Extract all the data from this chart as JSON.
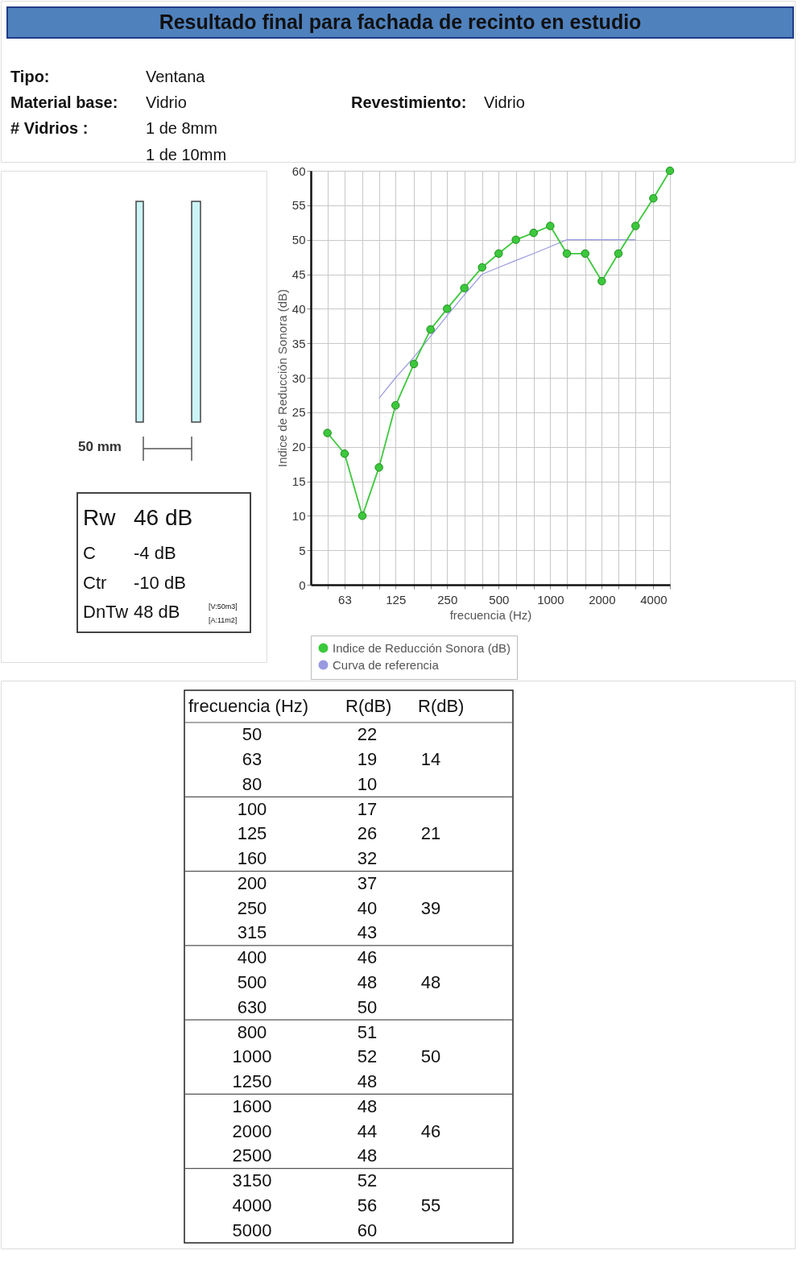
{
  "chart_data": [
    {
      "type": "other",
      "title": "Resultado final para fachada de recinto en estudio",
      "annotations": [
        "Tipo:",
        "Ventana",
        "Material base:",
        "Vidrio",
        "# Vidrios :",
        "1 de 8mm",
        "1 de 10mm",
        "Revestimiento:",
        "Vidrio",
        "50 mm",
        "Rw",
        "46 dB",
        "C",
        "-4 dB",
        "Ctr",
        "-10 dB",
        "DnTw",
        "48 dB",
        "[V:50m3]",
        "[A:11m2]"
      ]
    },
    {
      "type": "line",
      "xlabel": "frecuencia (Hz)",
      "ylabel": "Indice de Reducción Sonora (dB)",
      "x": [
        50,
        63,
        80,
        100,
        125,
        160,
        200,
        250,
        315,
        400,
        500,
        630,
        800,
        1000,
        1250,
        1600,
        2000,
        2500,
        3150,
        4000,
        5000
      ],
      "log": "x",
      "xlim": [
        40,
        5000
      ],
      "xticks": [
        {
          "value": 50,
          "label": null
        },
        63,
        {
          "value": 80,
          "label": null
        },
        {
          "value": 100,
          "label": null
        },
        125,
        {
          "value": 160,
          "label": null
        },
        {
          "value": 200,
          "label": null
        },
        250,
        {
          "value": 315,
          "label": null
        },
        {
          "value": 400,
          "label": null
        },
        500,
        {
          "value": 630,
          "label": null
        },
        {
          "value": 800,
          "label": null
        },
        1000,
        {
          "value": 1250,
          "label": null
        },
        {
          "value": 1600,
          "label": null
        },
        2000,
        {
          "value": 2500,
          "label": null
        },
        {
          "value": 3150,
          "label": null
        },
        4000,
        {
          "value": 5000,
          "label": null
        }
      ],
      "ylim": [
        0,
        60
      ],
      "yticks": [
        0,
        5,
        10,
        15,
        20,
        25,
        30,
        35,
        40,
        45,
        50,
        55,
        60
      ],
      "grid": true,
      "legend": "bottom",
      "series": [
        {
          "name": "Indice de Reducción Sonora (dB)",
          "color": "#3cc83c",
          "marker": "circle",
          "values": [
            22,
            19,
            10,
            17,
            26,
            32,
            37,
            40,
            43,
            46,
            48,
            50,
            51,
            52,
            48,
            48,
            44,
            48,
            52,
            56,
            60
          ]
        },
        {
          "name": "Curva de referencia",
          "color": "#9a9ae0",
          "marker": "none",
          "values": [
            null,
            null,
            null,
            27,
            30,
            33,
            36,
            39,
            42,
            45,
            46,
            47,
            48,
            49,
            50,
            50,
            50,
            50,
            50,
            null,
            null
          ]
        }
      ]
    },
    {
      "type": "other",
      "annotations": [
        "frecuencia (Hz)",
        "R(dB)",
        "R(dB)",
        "50",
        "63",
        "80",
        "100",
        "125",
        "160",
        "200",
        "250",
        "315",
        "400",
        "500",
        "630",
        "800",
        "1000",
        "1250",
        "1600",
        "2000",
        "2500",
        "3150",
        "4000",
        "5000",
        "22",
        "19",
        "10",
        "17",
        "26",
        "32",
        "37",
        "40",
        "43",
        "46",
        "48",
        "50",
        "51",
        "52",
        "48",
        "48",
        "44",
        "48",
        "52",
        "56",
        "60",
        "14",
        "21",
        "39",
        "48",
        "50",
        "46",
        "55"
      ]
    }
  ]
}
